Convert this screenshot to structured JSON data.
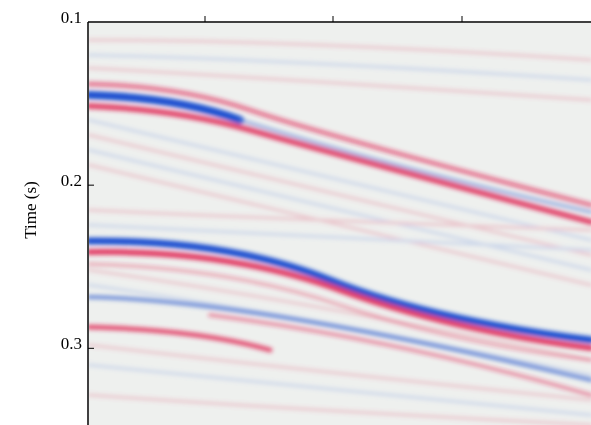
{
  "chart_data": {
    "type": "image",
    "y_label": "Time (s)",
    "ylim": [
      0.1,
      0.347
    ],
    "yticks": [
      0.1,
      0.2,
      0.3
    ]
  }
}
